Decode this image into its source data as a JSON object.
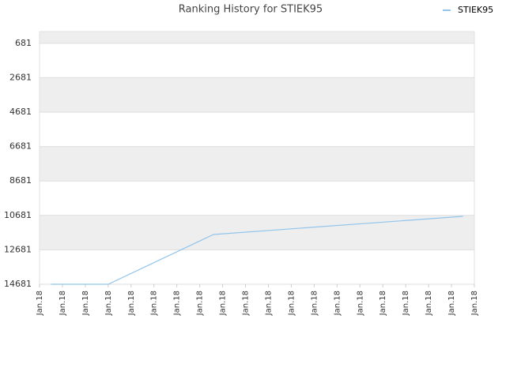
{
  "chart_data": {
    "type": "line",
    "title": "Ranking History for STIEK95",
    "x": [
      0.5,
      3,
      7.6,
      18.5
    ],
    "series": [
      {
        "name": "STIEK95",
        "color": "#92c5ec",
        "values": [
          14681,
          14681,
          11790,
          10734
        ]
      }
    ],
    "xlim": [
      0,
      19
    ],
    "xticks": [
      {
        "value": 0,
        "label": "Jan.18"
      },
      {
        "value": 1,
        "label": "Jan.18"
      },
      {
        "value": 2,
        "label": "Jan.18"
      },
      {
        "value": 3,
        "label": "Jan.18"
      },
      {
        "value": 4,
        "label": "Jan.18"
      },
      {
        "value": 5,
        "label": "Jan.18"
      },
      {
        "value": 6,
        "label": "Jan.18"
      },
      {
        "value": 7,
        "label": "Jan.18"
      },
      {
        "value": 8,
        "label": "Jan.18"
      },
      {
        "value": 9,
        "label": "Jan.18"
      },
      {
        "value": 10,
        "label": "Jan.18"
      },
      {
        "value": 11,
        "label": "Jan.18"
      },
      {
        "value": 12,
        "label": "Jan.18"
      },
      {
        "value": 13,
        "label": "Jan.18"
      },
      {
        "value": 14,
        "label": "Jan.18"
      },
      {
        "value": 15,
        "label": "Jan.18"
      },
      {
        "value": 16,
        "label": "Jan.18"
      },
      {
        "value": 17,
        "label": "Jan.18"
      },
      {
        "value": 18,
        "label": "Jan.18"
      },
      {
        "value": 19,
        "label": "Jan.18"
      }
    ],
    "ylim": [
      14681,
      0
    ],
    "yticks": [
      681,
      2681,
      4681,
      6681,
      8681,
      10681,
      12681,
      14681
    ],
    "grid": true,
    "legend": "top-right"
  }
}
